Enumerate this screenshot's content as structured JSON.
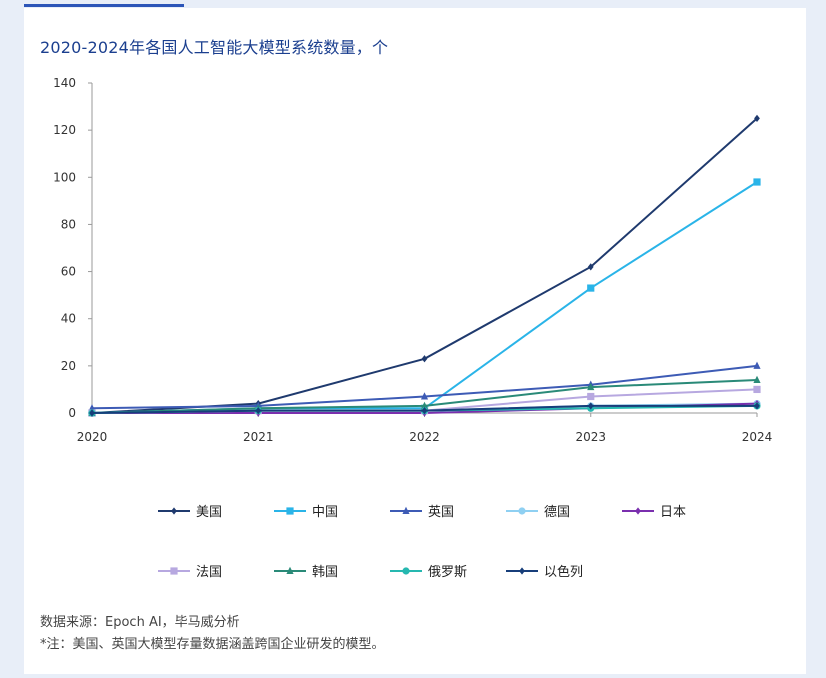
{
  "title": "2020-2024年各国人工智能大模型系统数量，个",
  "source": "数据来源：Epoch AI，毕马威分析",
  "note": "*注：美国、英国大模型存量数据涵盖跨国企业研发的模型。",
  "chart_data": {
    "type": "line",
    "title": "2020-2024年各国人工智能大模型系统数量，个",
    "categories": [
      "2020",
      "2021",
      "2022",
      "2023",
      "2024"
    ],
    "ylim": [
      0,
      140
    ],
    "yticks": [
      0,
      20,
      40,
      60,
      80,
      100,
      120,
      140
    ],
    "grid": false,
    "legend_position": "bottom",
    "series": [
      {
        "name": "美国",
        "color": "#1f3a6e",
        "marker": "diamond",
        "values": [
          0,
          4,
          23,
          62,
          125
        ]
      },
      {
        "name": "中国",
        "color": "#2ab4e8",
        "marker": "square",
        "values": [
          0,
          2,
          2,
          53,
          98
        ]
      },
      {
        "name": "英国",
        "color": "#3d5bb5",
        "marker": "triangle",
        "values": [
          2,
          3,
          7,
          12,
          20
        ]
      },
      {
        "name": "德国",
        "color": "#8fd0f2",
        "marker": "circle",
        "values": [
          0,
          1,
          1,
          3,
          4
        ]
      },
      {
        "name": "日本",
        "color": "#7a2fae",
        "marker": "diamond",
        "values": [
          0,
          0,
          0,
          2,
          4
        ]
      },
      {
        "name": "法国",
        "color": "#b7a8e0",
        "marker": "square",
        "values": [
          0,
          1,
          1,
          7,
          10
        ]
      },
      {
        "name": "韩国",
        "color": "#2a8a78",
        "marker": "triangle",
        "values": [
          0,
          2,
          3,
          11,
          14
        ]
      },
      {
        "name": "俄罗斯",
        "color": "#26b8b0",
        "marker": "circle",
        "values": [
          0,
          1,
          1,
          2,
          3
        ]
      },
      {
        "name": "以色列",
        "color": "#173e7a",
        "marker": "diamond",
        "values": [
          0,
          1,
          1,
          3,
          3
        ]
      }
    ]
  }
}
